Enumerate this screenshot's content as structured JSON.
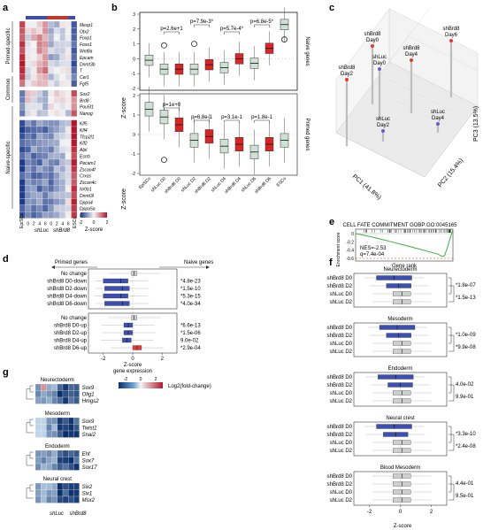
{
  "panels": {
    "a": {
      "letter": "a",
      "groups": [
        "Primed-specific",
        "Common",
        "Naive-specific"
      ],
      "genes_primed": [
        "Mesp1",
        "Otx2",
        "Foxp1",
        "Foxo1",
        "Wnt8a",
        "Epcam",
        "Dnmt3b",
        "T",
        "Cer1",
        "Fgf5"
      ],
      "genes_common": [
        "Sox2",
        "Brd8",
        "Pou5f1",
        "Nanog"
      ],
      "genes_naive": [
        "Klf5",
        "Klf4",
        "Tfcp2l1",
        "Klf2",
        "Alpl",
        "Esrrb",
        "Pecam1",
        "Zscan4f",
        "Crxos",
        "Zscan4c",
        "Nr0b1",
        "Dnmt3l",
        "Dppa4",
        "Dppa5a",
        "Dppa3"
      ],
      "col_ticks": [
        "0",
        "2",
        "4",
        "6",
        "0",
        "2",
        "4",
        "6"
      ],
      "xgroups": [
        "EpiSCs",
        "shLuc",
        "shBrd8",
        "ESCs"
      ],
      "scale_ticks": [
        "-2",
        "0",
        "2"
      ],
      "scale_label": "Z-score"
    },
    "b": {
      "letter": "b",
      "ylabel": "Z-score",
      "top_label": "Naive genes",
      "bottom_label": "Primed genes",
      "categories": [
        "EpiSCs",
        "shLuc D0",
        "shBrd8 D0",
        "shLuc D2",
        "shBrd8 D2",
        "shLuc D4",
        "shBrd8 D4",
        "shLuc D6",
        "shBrd8 D6",
        "ESCs"
      ],
      "top_pvals": [
        "p=2.6e+1",
        "p=7.9e-3*",
        "p=5.7e-4*",
        "p=6.8e-5*"
      ],
      "bottom_pvals": [
        "p=1e+0",
        "p=6.8e-1",
        "p=3.1e-1",
        "p=1.8e-1"
      ],
      "top_yticks": [
        "-2",
        "-1",
        "0",
        "1",
        "2",
        "3"
      ],
      "bottom_yticks": [
        "-2",
        "-1",
        "0",
        "1",
        "2"
      ]
    },
    "c": {
      "letter": "c",
      "points": [
        "shBrd8 Day0",
        "shLuc Day0",
        "shBrd8 Day4",
        "shBrd8 Day6",
        "shBrd8 Day2",
        "shLuc Day4",
        "shLuc Day2"
      ],
      "axes": [
        "PC1 (41.8%)",
        "PC2 (15.4%)",
        "PC3 (13.5%)"
      ]
    },
    "d": {
      "letter": "d",
      "left_title": "Primed genes",
      "right_title": "Naive genes",
      "rows_top": [
        "No change",
        "shBrd8 D0-down",
        "shBrd8 D2-down",
        "shBrd8 D4-down",
        "shBrd8 D6-down"
      ],
      "pvals_top": [
        "*4.8e-23",
        "*1.5e-10",
        "*5.3e-15",
        "*4.0e-34"
      ],
      "rows_bottom": [
        "No change",
        "shBrd8 D0-up",
        "shBrd8 D2-up",
        "shBrd8 D4-up",
        "shBrd8 D6-up"
      ],
      "pvals_bottom": [
        "*6.6e-13",
        "*1.5e-06",
        "9.0e-02",
        "*2.9e-04"
      ],
      "xticks": [
        "-2",
        "0",
        "2"
      ],
      "xlabel": "Z-score\ngene expression"
    },
    "e": {
      "letter": "e",
      "title": "CELL FATE COMMITMENT GOBP:GO:0045165",
      "nes": "NES=-2.53",
      "q": "q=7.4e-04",
      "ylabel": "Enrichment score",
      "xlabel": "Gene rank",
      "yticks": [
        "0",
        "-0.2",
        "-0.4",
        "-0.6"
      ]
    },
    "f": {
      "letter": "f",
      "rows": [
        "shBrd8 D0",
        "shBrd8 D2",
        "shLuc D0",
        "shLuc D2"
      ],
      "lineages": [
        {
          "title": "Neurectoderm",
          "p1": "*1.8e-07",
          "p2": "*1.5e-13"
        },
        {
          "title": "Mesoderm",
          "p1": "*1.0e-09",
          "p2": "*9.9e-08"
        },
        {
          "title": "Endoderm",
          "p1": "4.0e-02",
          "p2": "9.9e-01"
        },
        {
          "title": "Neural crest",
          "p1": "*3.3e-10",
          "p2": "*2.4e-08"
        },
        {
          "title": "Blood Mesoderm",
          "p1": "4.4e-01",
          "p2": "9.5e-01"
        }
      ],
      "xticks": [
        "-2",
        "0",
        "2"
      ],
      "xlabel": "Z-score"
    },
    "g": {
      "letter": "g",
      "groups": [
        {
          "title": "Neurectoderm",
          "genes": [
            "Sox9",
            "Olig1",
            "Hmgs2"
          ]
        },
        {
          "title": "Mesoderm",
          "genes": [
            "Sox9",
            "Twist1",
            "Snai2"
          ]
        },
        {
          "title": "Endoderm",
          "genes": [
            "Ehf",
            "Sox7",
            "Sox17"
          ]
        },
        {
          "title": "Neural crest",
          "genes": [
            "Six2",
            "Six1",
            "Msx2"
          ]
        }
      ],
      "xlabels": [
        "shLuc",
        "shBrd8"
      ],
      "scale_ticks": [
        "-2",
        "0",
        "2"
      ],
      "scale_label": "Log2(fold-change)"
    }
  },
  "chart_data": [
    {
      "type": "heatmap",
      "panel": "a",
      "rows": 29,
      "cols": 10,
      "value_range": [
        -2,
        2
      ]
    },
    {
      "type": "box",
      "panel": "b-top",
      "categories": [
        "EpiSCs",
        "shLuc D0",
        "shBrd8 D0",
        "shLuc D2",
        "shBrd8 D2",
        "shLuc D4",
        "shBrd8 D4",
        "shLuc D6",
        "shBrd8 D6",
        "ESCs"
      ],
      "medians": [
        -0.1,
        -0.7,
        -0.7,
        -0.7,
        -0.4,
        -0.6,
        0.0,
        -0.3,
        0.7,
        2.3
      ],
      "ylim": [
        -2,
        3
      ]
    },
    {
      "type": "box",
      "panel": "b-bottom",
      "categories": [
        "EpiSCs",
        "shLuc D0",
        "shBrd8 D0",
        "shLuc D2",
        "shBrd8 D2",
        "shLuc D4",
        "shBrd8 D4",
        "shLuc D6",
        "shBrd8 D6",
        "ESCs"
      ],
      "medians": [
        1.3,
        0.9,
        0.5,
        -0.3,
        -0.1,
        -0.6,
        -0.5,
        -0.9,
        -0.5,
        -0.3
      ],
      "ylim": [
        -2,
        2
      ]
    },
    {
      "type": "scatter",
      "panel": "c",
      "labels": [
        "shBrd8 Day0",
        "shLuc Day0",
        "shBrd8 Day4",
        "shBrd8 Day6",
        "shBrd8 Day2",
        "shLuc Day4",
        "shLuc Day2"
      ]
    },
    {
      "type": "box",
      "panel": "d",
      "medians_top": [
        0.1,
        -0.8,
        -0.7,
        -0.8,
        -0.7
      ],
      "medians_bottom": [
        0.1,
        -0.3,
        -0.3,
        -0.4,
        0.3
      ],
      "xlim": [
        -3,
        3
      ]
    },
    {
      "type": "line",
      "panel": "e",
      "min_es": -0.56,
      "ylim": [
        -0.6,
        0.05
      ]
    },
    {
      "type": "box",
      "panel": "f",
      "xlim": [
        -3,
        3
      ]
    },
    {
      "type": "heatmap",
      "panel": "g",
      "rows": 3,
      "cols": 8,
      "value_range": [
        -2,
        2
      ]
    }
  ]
}
